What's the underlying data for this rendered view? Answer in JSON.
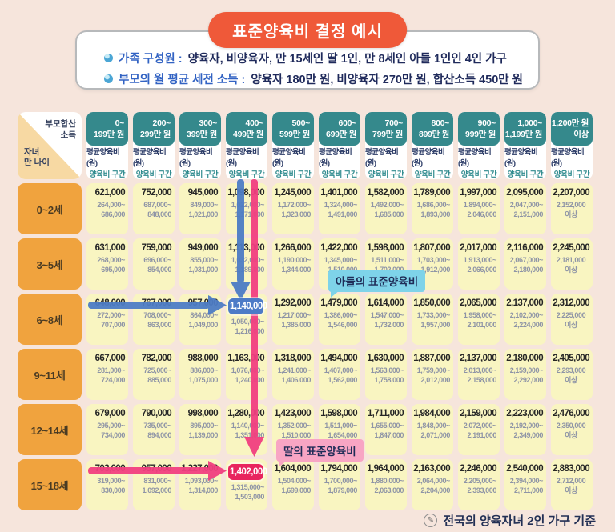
{
  "title": "표준양육비 결정 예시",
  "info_items": [
    {
      "label": "가족 구성원 :",
      "value": "양육자, 비양육자, 만 15세인 딸 1인, 만 8세인 아들 1인인 4인 가구"
    },
    {
      "label": "부모의 월 평균 세전 소득 :",
      "value": "양육자 180만 원, 비양육자 270만 원, 합산소득 450만 원"
    }
  ],
  "footer_note": "전국의 양육자녀 2인 가구 기준",
  "colors": {
    "page_bg": "#F6E5DC",
    "title_bg": "#EF5939",
    "header_teal": "#35898C",
    "row_label_orange": "#F0A33E",
    "corner_peach": "#F7D9A3",
    "cell_yellow": "#F9F5C1",
    "range_text": "#8E94A6",
    "son_blue": "#4D7BC7",
    "daughter_pink": "#E8255F",
    "arrow_blue": "#4D7CC5",
    "arrow_pink": "#F13F80",
    "tooltip_blue": "#7ED3E9",
    "tooltip_pink": "#F8A5C4",
    "info_label_blue": "#3263C3",
    "info_value_navy": "#1F2A5B"
  },
  "chart_data": {
    "type": "table",
    "title": "표준양육비 결정 예시",
    "corner_top": "부모합산\n소득",
    "corner_bottom": "자녀\n만 나이",
    "column_sub1": "평균양육비(원)",
    "column_sub2": "양육비 구간",
    "columns": [
      "0~\n199만 원",
      "200~\n299만 원",
      "300~\n399만 원",
      "400~\n499만 원",
      "500~\n599만 원",
      "600~\n699만 원",
      "700~\n799만 원",
      "800~\n899만 원",
      "900~\n999만 원",
      "1,000~\n1,199만 원",
      "1,200만 원\n이상"
    ],
    "rows": [
      {
        "age": "0~2세",
        "cells": [
          {
            "avg": "621,000",
            "range": "264,000~\n686,000"
          },
          {
            "avg": "752,000",
            "range": "687,000~\n848,000"
          },
          {
            "avg": "945,000",
            "range": "849,000~\n1,021,000"
          },
          {
            "avg": "1,098,000",
            "range": "1,022,000~\n1,171,000"
          },
          {
            "avg": "1,245,000",
            "range": "1,172,000~\n1,323,000"
          },
          {
            "avg": "1,401,000",
            "range": "1,324,000~\n1,491,000"
          },
          {
            "avg": "1,582,000",
            "range": "1,492,000~\n1,685,000"
          },
          {
            "avg": "1,789,000",
            "range": "1,686,000~\n1,893,000"
          },
          {
            "avg": "1,997,000",
            "range": "1,894,000~\n2,046,000"
          },
          {
            "avg": "2,095,000",
            "range": "2,047,000~\n2,151,000"
          },
          {
            "avg": "2,207,000",
            "range": "2,152,000\n이상"
          }
        ]
      },
      {
        "age": "3~5세",
        "cells": [
          {
            "avg": "631,000",
            "range": "268,000~\n695,000"
          },
          {
            "avg": "759,000",
            "range": "696,000~\n854,000"
          },
          {
            "avg": "949,000",
            "range": "855,000~\n1,031,000"
          },
          {
            "avg": "1,113,000",
            "range": "1,032,000~\n1,189,000"
          },
          {
            "avg": "1,266,000",
            "range": "1,190,000~\n1,344,000"
          },
          {
            "avg": "1,422,000",
            "range": "1,345,000~\n1,510,000"
          },
          {
            "avg": "1,598,000",
            "range": "1,511,000~\n1,702,000"
          },
          {
            "avg": "1,807,000",
            "range": "1,703,000~\n1,912,000"
          },
          {
            "avg": "2,017,000",
            "range": "1,913,000~\n2,066,000"
          },
          {
            "avg": "2,116,000",
            "range": "2,067,000~\n2,180,000"
          },
          {
            "avg": "2,245,000",
            "range": "2,181,000\n이상"
          }
        ]
      },
      {
        "age": "6~8세",
        "cells": [
          {
            "avg": "648,000",
            "range": "272,000~\n707,000"
          },
          {
            "avg": "767,000",
            "range": "708,000~\n863,000"
          },
          {
            "avg": "957,000",
            "range": "864,000~\n1,049,000"
          },
          {
            "avg": "1,140,000",
            "range": "1,050,000~\n1,216,000",
            "highlight": "blue"
          },
          {
            "avg": "1,292,000",
            "range": "1,217,000~\n1,385,000"
          },
          {
            "avg": "1,479,000",
            "range": "1,386,000~\n1,546,000"
          },
          {
            "avg": "1,614,000",
            "range": "1,547,000~\n1,732,000"
          },
          {
            "avg": "1,850,000",
            "range": "1,733,000~\n1,957,000"
          },
          {
            "avg": "2,065,000",
            "range": "1,958,000~\n2,101,000"
          },
          {
            "avg": "2,137,000",
            "range": "2,102,000~\n2,224,000"
          },
          {
            "avg": "2,312,000",
            "range": "2,225,000\n이상"
          }
        ]
      },
      {
        "age": "9~11세",
        "cells": [
          {
            "avg": "667,000",
            "range": "281,000~\n724,000"
          },
          {
            "avg": "782,000",
            "range": "725,000~\n885,000"
          },
          {
            "avg": "988,000",
            "range": "886,000~\n1,075,000"
          },
          {
            "avg": "1,163,000",
            "range": "1,076,000~\n1,240,000"
          },
          {
            "avg": "1,318,000",
            "range": "1,241,000~\n1,406,000"
          },
          {
            "avg": "1,494,000",
            "range": "1,407,000~\n1,562,000"
          },
          {
            "avg": "1,630,000",
            "range": "1,563,000~\n1,758,000"
          },
          {
            "avg": "1,887,000",
            "range": "1,759,000~\n2,012,000"
          },
          {
            "avg": "2,137,000",
            "range": "2,013,000~\n2,158,000"
          },
          {
            "avg": "2,180,000",
            "range": "2,159,000~\n2,292,000"
          },
          {
            "avg": "2,405,000",
            "range": "2,293,000\n이상"
          }
        ]
      },
      {
        "age": "12~14세",
        "cells": [
          {
            "avg": "679,000",
            "range": "295,000~\n734,000"
          },
          {
            "avg": "790,000",
            "range": "735,000~\n894,000"
          },
          {
            "avg": "998,000",
            "range": "895,000~\n1,139,000"
          },
          {
            "avg": "1,280,000",
            "range": "1,140,000~\n1,351,000"
          },
          {
            "avg": "1,423,000",
            "range": "1,352,000~\n1,510,000"
          },
          {
            "avg": "1,598,000",
            "range": "1,511,000~\n1,654,000"
          },
          {
            "avg": "1,711,000",
            "range": "1,655,000~\n1,847,000"
          },
          {
            "avg": "1,984,000",
            "range": "1,848,000~\n2,071,000"
          },
          {
            "avg": "2,159,000",
            "range": "2,072,000~\n2,191,000"
          },
          {
            "avg": "2,223,000",
            "range": "2,192,000~\n2,349,000"
          },
          {
            "avg": "2,476,000",
            "range": "2,350,000\n이상"
          }
        ]
      },
      {
        "age": "15~18세",
        "cells": [
          {
            "avg": "703,000",
            "range": "319,000~\n830,000"
          },
          {
            "avg": "957,000",
            "range": "831,000~\n1,092,000"
          },
          {
            "avg": "1,227,000",
            "range": "1,093,000~\n1,314,000"
          },
          {
            "avg": "1,402,000",
            "range": "1,315,000~\n1,503,000",
            "highlight": "pink"
          },
          {
            "avg": "1,604,000",
            "range": "1,504,000~\n1,699,000"
          },
          {
            "avg": "1,794,000",
            "range": "1,700,000~\n1,879,000"
          },
          {
            "avg": "1,964,000",
            "range": "1,880,000~\n2,063,000"
          },
          {
            "avg": "2,163,000",
            "range": "2,064,000~\n2,204,000"
          },
          {
            "avg": "2,246,000",
            "range": "2,205,000~\n2,393,000"
          },
          {
            "avg": "2,540,000",
            "range": "2,394,000~\n2,711,000"
          },
          {
            "avg": "2,883,000",
            "range": "2,712,000\n이상"
          }
        ]
      }
    ],
    "highlights": [
      {
        "row": 2,
        "col": 3,
        "value": "1,140,000",
        "color": "blue",
        "label": "아들의 표준양육비"
      },
      {
        "row": 5,
        "col": 3,
        "value": "1,402,000",
        "color": "pink",
        "label": "딸의 표준양육비"
      }
    ]
  }
}
